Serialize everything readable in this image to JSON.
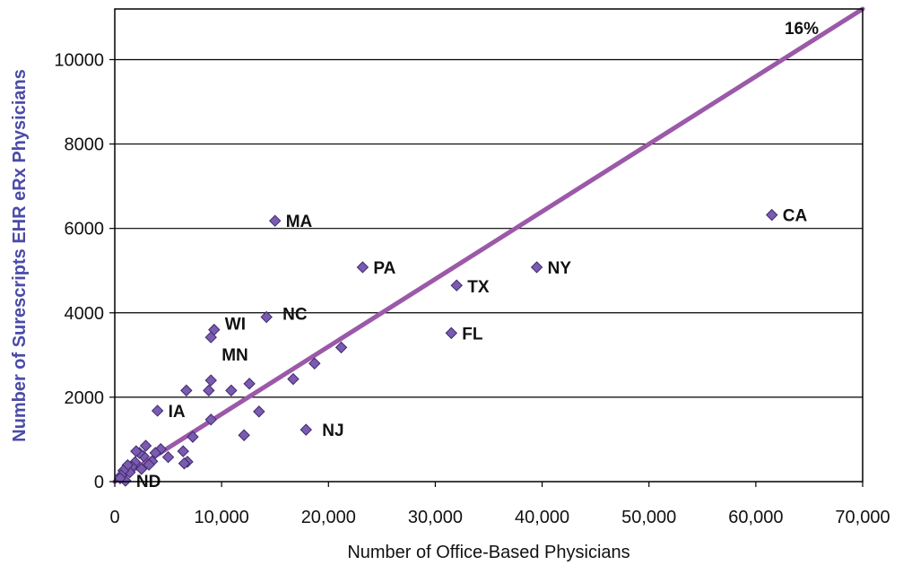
{
  "chart_data": {
    "type": "scatter",
    "title": "",
    "xlabel": "Number of Office-Based Physicians",
    "ylabel": "Number of Surescripts EHR eRx Physicians",
    "xlim": [
      0,
      70000
    ],
    "ylim": [
      0,
      11200
    ],
    "x_ticks": [
      0,
      10000,
      20000,
      30000,
      40000,
      50000,
      60000,
      70000
    ],
    "x_tick_labels": [
      "0",
      "10,000",
      "20,000",
      "30,000",
      "40,000",
      "50,000",
      "60,000",
      "70,000"
    ],
    "y_ticks": [
      0,
      2000,
      4000,
      6000,
      8000,
      10000
    ],
    "y_tick_labels": [
      "0",
      "2000",
      "4000",
      "6000",
      "8000",
      "10000"
    ],
    "grid": "horizontal",
    "colors": {
      "marker": "#7B5BB0",
      "marker_edge": "#3E2A6E",
      "trend_line": "#9B59A8",
      "ylabel": "#4B4BA8",
      "grid": "#000000"
    },
    "trend_line": {
      "x": [
        0,
        70000
      ],
      "y": [
        0,
        11200
      ],
      "label": "16%"
    },
    "points": [
      {
        "x": 61500,
        "y": 6320,
        "label": "CA"
      },
      {
        "x": 39500,
        "y": 5080,
        "label": "NY"
      },
      {
        "x": 32000,
        "y": 4650,
        "label": "TX"
      },
      {
        "x": 31500,
        "y": 3520,
        "label": "FL"
      },
      {
        "x": 23200,
        "y": 5080,
        "label": "PA"
      },
      {
        "x": 15000,
        "y": 6180,
        "label": "MA"
      },
      {
        "x": 14200,
        "y": 3900,
        "label": "NC"
      },
      {
        "x": 9300,
        "y": 3600,
        "label": "WI"
      },
      {
        "x": 9000,
        "y": 3420,
        "label": "MN"
      },
      {
        "x": 17900,
        "y": 1230,
        "label": "NJ"
      },
      {
        "x": 4000,
        "y": 1680,
        "label": "IA"
      },
      {
        "x": 1000,
        "y": 20,
        "label": "ND"
      },
      {
        "x": 21200,
        "y": 3180,
        "label": ""
      },
      {
        "x": 18700,
        "y": 2800,
        "label": ""
      },
      {
        "x": 16700,
        "y": 2430,
        "label": ""
      },
      {
        "x": 13500,
        "y": 1660,
        "label": ""
      },
      {
        "x": 12600,
        "y": 2320,
        "label": ""
      },
      {
        "x": 12100,
        "y": 1100,
        "label": ""
      },
      {
        "x": 10900,
        "y": 2160,
        "label": ""
      },
      {
        "x": 9000,
        "y": 2400,
        "label": ""
      },
      {
        "x": 8800,
        "y": 2160,
        "label": ""
      },
      {
        "x": 9000,
        "y": 1470,
        "label": ""
      },
      {
        "x": 6700,
        "y": 2160,
        "label": ""
      },
      {
        "x": 7300,
        "y": 1060,
        "label": ""
      },
      {
        "x": 6400,
        "y": 720,
        "label": ""
      },
      {
        "x": 6800,
        "y": 470,
        "label": ""
      },
      {
        "x": 6500,
        "y": 430,
        "label": ""
      },
      {
        "x": 5000,
        "y": 580,
        "label": ""
      },
      {
        "x": 4300,
        "y": 770,
        "label": ""
      },
      {
        "x": 3800,
        "y": 680,
        "label": ""
      },
      {
        "x": 3500,
        "y": 480,
        "label": ""
      },
      {
        "x": 3200,
        "y": 400,
        "label": ""
      },
      {
        "x": 2900,
        "y": 850,
        "label": ""
      },
      {
        "x": 2700,
        "y": 600,
        "label": ""
      },
      {
        "x": 2500,
        "y": 300,
        "label": ""
      },
      {
        "x": 2300,
        "y": 680,
        "label": ""
      },
      {
        "x": 2000,
        "y": 720,
        "label": ""
      },
      {
        "x": 1900,
        "y": 460,
        "label": ""
      },
      {
        "x": 1600,
        "y": 350,
        "label": ""
      },
      {
        "x": 1400,
        "y": 220,
        "label": ""
      },
      {
        "x": 1200,
        "y": 390,
        "label": ""
      },
      {
        "x": 800,
        "y": 260,
        "label": ""
      },
      {
        "x": 600,
        "y": 150,
        "label": ""
      },
      {
        "x": 500,
        "y": 80,
        "label": ""
      }
    ]
  }
}
